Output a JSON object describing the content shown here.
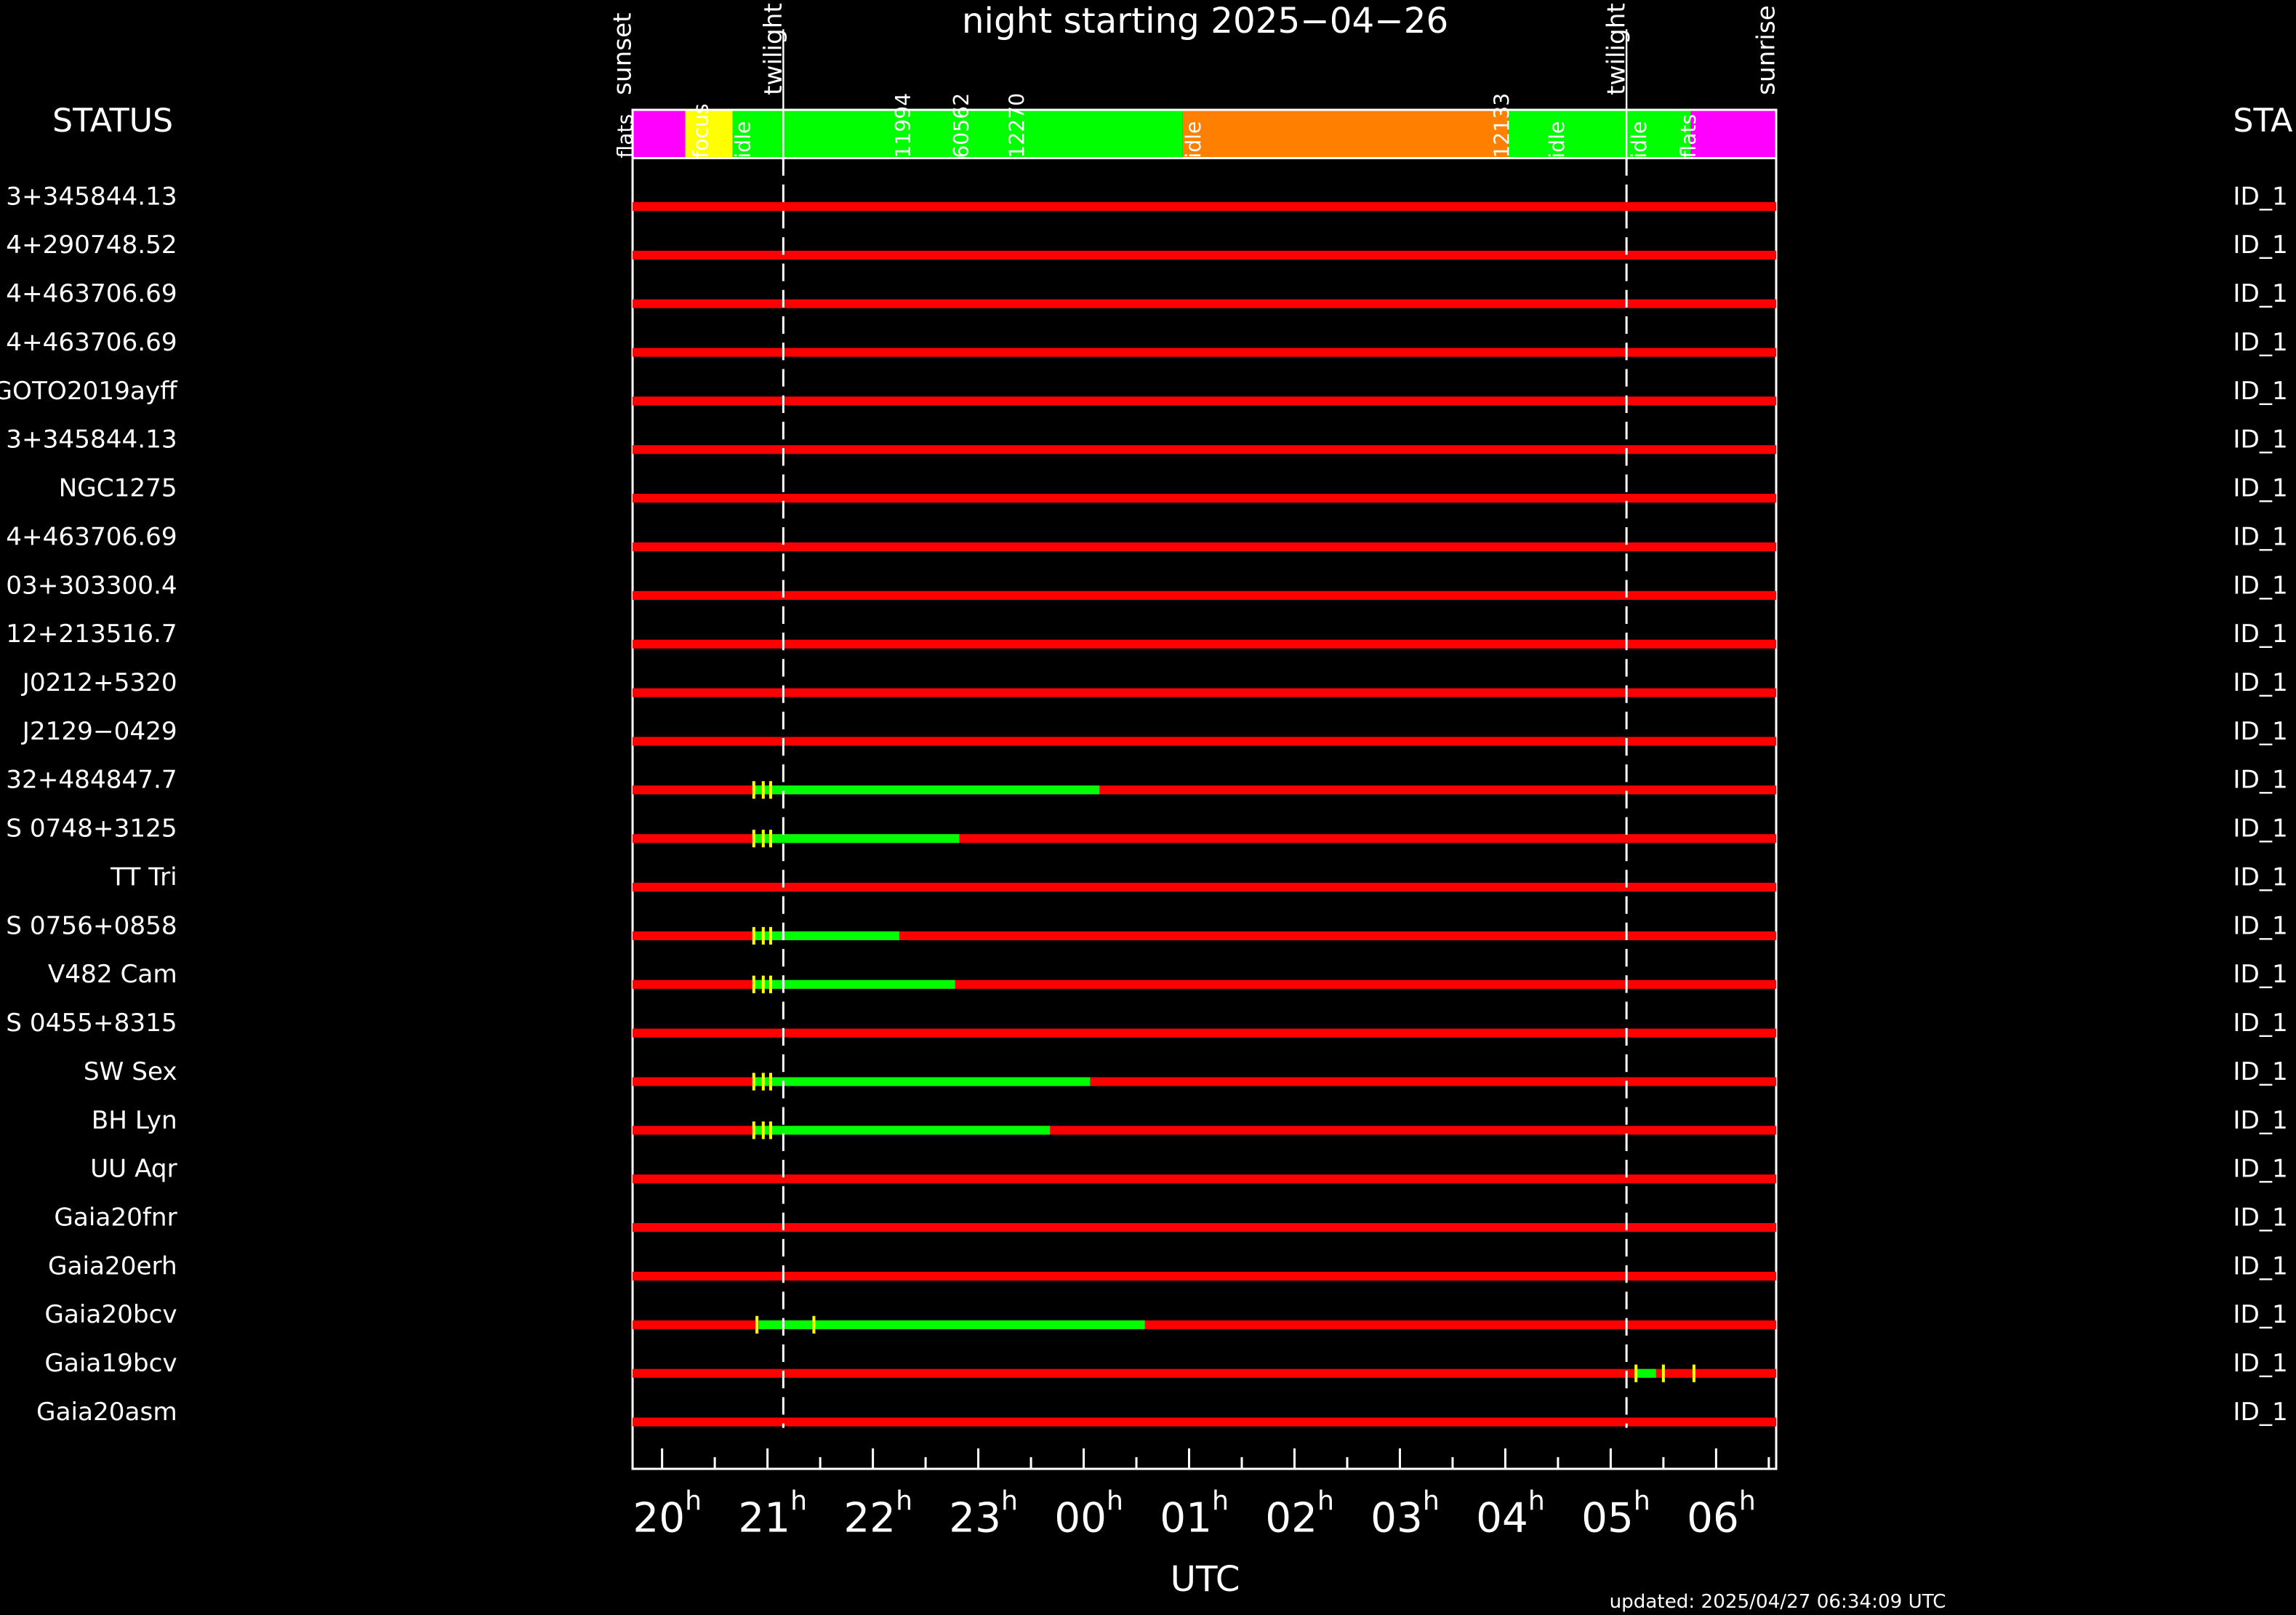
{
  "chart_data": {
    "type": "timeline",
    "title": "night starting 2025−04−26",
    "xlabel": "UTC",
    "footnote": "updated: 2025/04/27 06:34:09 UTC",
    "left_header": "STATUS",
    "right_header": "STA",
    "tick_suffix": "h",
    "xlim": [
      19.72,
      30.57
    ],
    "xticks": [
      {
        "value": 20,
        "label": "20"
      },
      {
        "value": 21,
        "label": "21"
      },
      {
        "value": 22,
        "label": "22"
      },
      {
        "value": 23,
        "label": "23"
      },
      {
        "value": 24,
        "label": "00"
      },
      {
        "value": 25,
        "label": "01"
      },
      {
        "value": 26,
        "label": "02"
      },
      {
        "value": 27,
        "label": "03"
      },
      {
        "value": 28,
        "label": "04"
      },
      {
        "value": 29,
        "label": "05"
      },
      {
        "value": 30,
        "label": "06"
      }
    ],
    "xminorticks": [
      20.5,
      21.5,
      22.5,
      23.5,
      24.5,
      25.5,
      26.5,
      27.5,
      28.5,
      29.5,
      30.5
    ],
    "events": [
      {
        "label": "sunset",
        "x": 19.72,
        "line": false
      },
      {
        "label": "twilight",
        "x": 21.15,
        "line": true
      },
      {
        "label": "twilight",
        "x": 29.15,
        "line": true
      },
      {
        "label": "sunrise",
        "x": 30.57,
        "line": false
      }
    ],
    "schedule": [
      {
        "start": 19.72,
        "end": 20.22,
        "color": "#ff00ff"
      },
      {
        "start": 20.22,
        "end": 20.67,
        "color": "#ffff00"
      },
      {
        "start": 20.67,
        "end": 24.94,
        "color": "#00ff00"
      },
      {
        "start": 24.94,
        "end": 28.03,
        "color": "#ff8000"
      },
      {
        "start": 28.03,
        "end": 29.76,
        "color": "#00ff00"
      },
      {
        "start": 29.76,
        "end": 30.57,
        "color": "#ff00ff"
      }
    ],
    "schedule_labels": [
      {
        "text": "flats",
        "x": 19.66
      },
      {
        "text": "focus",
        "x": 20.38
      },
      {
        "text": "idle",
        "x": 20.78
      },
      {
        "text": "11994",
        "x": 22.3
      },
      {
        "text": "60562",
        "x": 22.85
      },
      {
        "text": "12270",
        "x": 23.38
      },
      {
        "text": "idle",
        "x": 25.05
      },
      {
        "text": "12133",
        "x": 27.98
      },
      {
        "text": "idle",
        "x": 28.5
      },
      {
        "text": "idle",
        "x": 29.28
      },
      {
        "text": "flats",
        "x": 29.75
      }
    ],
    "schedule_label_color": "#1a1aff",
    "bar_color": "#ff0000",
    "window_color": "#00ff00",
    "mark_color": "#ffff00",
    "rows": [
      {
        "label": "3+345844.13",
        "right_label": "ID_1"
      },
      {
        "label": "4+290748.52",
        "right_label": "ID_1"
      },
      {
        "label": "4+463706.69",
        "right_label": "ID_1"
      },
      {
        "label": "4+463706.69",
        "right_label": "ID_1"
      },
      {
        "label": "GOTO2019ayff",
        "right_label": "ID_1"
      },
      {
        "label": "3+345844.13",
        "right_label": "ID_1"
      },
      {
        "label": "NGC1275",
        "right_label": "ID_1"
      },
      {
        "label": "4+463706.69",
        "right_label": "ID_1"
      },
      {
        "label": "03+303300.4",
        "right_label": "ID_1"
      },
      {
        "label": "12+213516.7",
        "right_label": "ID_1"
      },
      {
        "label": "J0212+5320",
        "right_label": "ID_1"
      },
      {
        "label": "J2129−0429",
        "right_label": "ID_1"
      },
      {
        "label": "32+484847.7",
        "right_label": "ID_1",
        "windows": [
          [
            20.86,
            24.15
          ]
        ],
        "marks": [
          20.87,
          20.96,
          21.03
        ]
      },
      {
        "label": "S 0748+3125",
        "right_label": "ID_1",
        "windows": [
          [
            20.86,
            22.82
          ]
        ],
        "marks": [
          20.87,
          20.96,
          21.03
        ]
      },
      {
        "label": "TT Tri",
        "right_label": "ID_1"
      },
      {
        "label": "S 0756+0858",
        "right_label": "ID_1",
        "windows": [
          [
            20.86,
            22.25
          ]
        ],
        "marks": [
          20.87,
          20.96,
          21.03
        ]
      },
      {
        "label": "V482 Cam",
        "right_label": "ID_1",
        "windows": [
          [
            20.86,
            22.78
          ]
        ],
        "marks": [
          20.87,
          20.96,
          21.03
        ]
      },
      {
        "label": "S 0455+8315",
        "right_label": "ID_1"
      },
      {
        "label": "SW Sex",
        "right_label": "ID_1",
        "windows": [
          [
            20.86,
            24.06
          ]
        ],
        "marks": [
          20.87,
          20.96,
          21.03
        ]
      },
      {
        "label": "BH Lyn",
        "right_label": "ID_1",
        "windows": [
          [
            20.86,
            23.68
          ]
        ],
        "marks": [
          20.87,
          20.96,
          21.03
        ]
      },
      {
        "label": "UU Aqr",
        "right_label": "ID_1"
      },
      {
        "label": "Gaia20fnr",
        "right_label": "ID_1"
      },
      {
        "label": "Gaia20erh",
        "right_label": "ID_1"
      },
      {
        "label": "Gaia20bcv",
        "right_label": "ID_1",
        "windows": [
          [
            20.92,
            24.58
          ]
        ],
        "marks": [
          20.9,
          21.44
        ]
      },
      {
        "label": "Gaia19bcv",
        "right_label": "ID_1",
        "windows": [
          [
            29.24,
            29.43
          ]
        ],
        "marks": [
          29.24,
          29.5,
          29.79
        ]
      },
      {
        "label": "Gaia20asm",
        "right_label": "ID_1"
      }
    ]
  }
}
